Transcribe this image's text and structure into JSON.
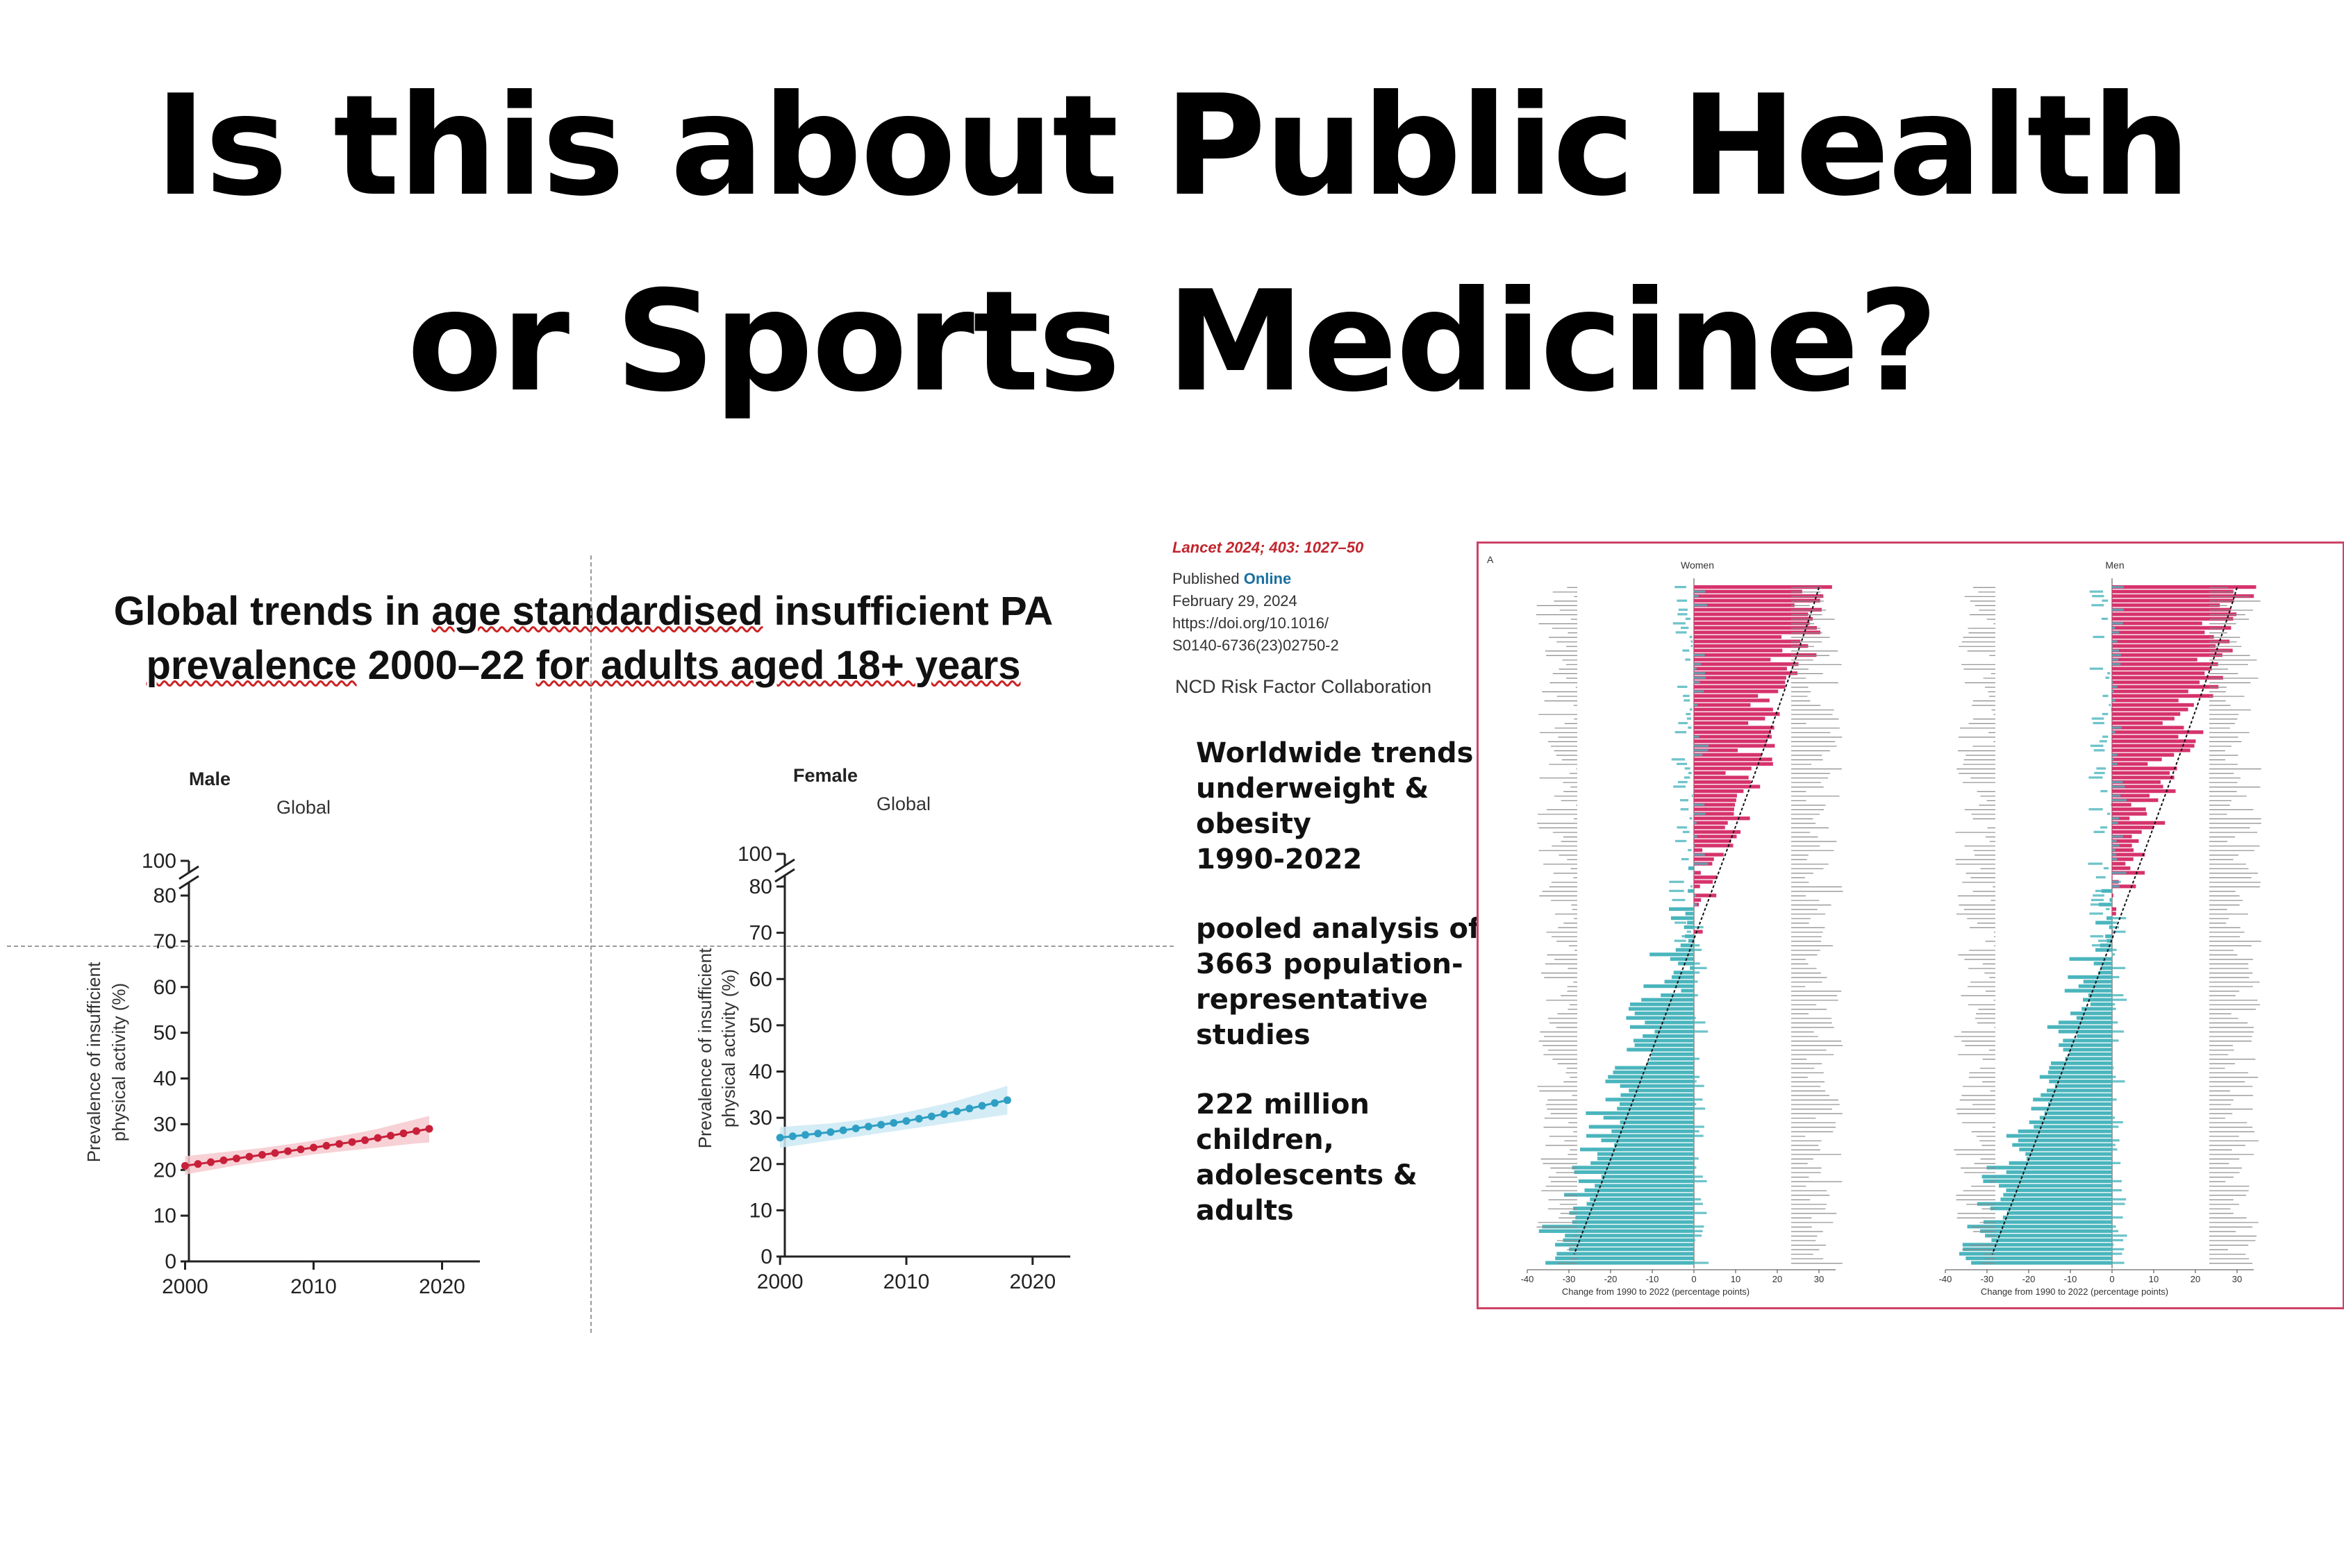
{
  "title": {
    "line1": "Is this about Public Health",
    "line2": "or Sports Medicine?"
  },
  "left_panel": {
    "title_before": "Global trends in ",
    "title_ul1": "age standardised",
    "title_mid": " insufficient PA",
    "title_ul2": "prevalence",
    "title_after1": " 2000–22 ",
    "title_ul3": "for adults aged 18+ years"
  },
  "chart_data": [
    {
      "type": "line",
      "label": "Male",
      "title": "Global",
      "ylabel": "Prevalence of insufficient physical activity (%)",
      "x": [
        2000,
        2001,
        2002,
        2003,
        2004,
        2005,
        2006,
        2007,
        2008,
        2009,
        2010,
        2011,
        2012,
        2013,
        2014,
        2015,
        2016,
        2017,
        2018,
        2019
      ],
      "values": [
        20.9,
        21.3,
        21.7,
        22.1,
        22.5,
        22.9,
        23.3,
        23.7,
        24.1,
        24.5,
        24.9,
        25.3,
        25.7,
        26.1,
        26.5,
        27.0,
        27.5,
        28.0,
        28.5,
        29.0
      ],
      "band_lower": [
        19.0,
        19.5,
        20.0,
        20.5,
        21.0,
        21.4,
        21.8,
        22.2,
        22.6,
        23.0,
        23.4,
        23.7,
        24.0,
        24.3,
        24.6,
        24.9,
        25.2,
        25.5,
        25.8,
        26.0
      ],
      "band_upper": [
        23.0,
        23.3,
        23.6,
        23.9,
        24.2,
        24.5,
        24.8,
        25.2,
        25.6,
        26.0,
        26.4,
        26.9,
        27.4,
        27.9,
        28.4,
        29.0,
        29.7,
        30.4,
        31.1,
        31.8
      ],
      "yticks": [
        0,
        10,
        20,
        30,
        40,
        50,
        60,
        70,
        80,
        100
      ],
      "xticks": [
        2000,
        2010,
        2020
      ],
      "xlim": [
        1999,
        2021
      ],
      "color": "#c8203a",
      "band_color": "#f6c9ce"
    },
    {
      "type": "line",
      "label": "Female",
      "title": "Global",
      "ylabel": "Prevalence of insufficient physical activity (%)",
      "x": [
        2000,
        2001,
        2002,
        2003,
        2004,
        2005,
        2006,
        2007,
        2008,
        2009,
        2010,
        2011,
        2012,
        2013,
        2014,
        2015,
        2016,
        2017,
        2018
      ],
      "values": [
        25.7,
        26.0,
        26.3,
        26.6,
        26.9,
        27.3,
        27.7,
        28.1,
        28.5,
        28.9,
        29.3,
        29.8,
        30.3,
        30.8,
        31.4,
        32.0,
        32.6,
        33.2,
        33.8
      ],
      "band_lower": [
        23.5,
        23.9,
        24.3,
        24.7,
        25.1,
        25.5,
        25.9,
        26.3,
        26.7,
        27.1,
        27.5,
        27.9,
        28.3,
        28.7,
        29.1,
        29.5,
        29.9,
        30.3,
        30.7
      ],
      "band_upper": [
        28.0,
        28.2,
        28.4,
        28.6,
        28.8,
        29.1,
        29.4,
        29.8,
        30.2,
        30.7,
        31.2,
        31.8,
        32.4,
        33.0,
        33.7,
        34.5,
        35.3,
        36.1,
        36.9
      ],
      "yticks": [
        0,
        10,
        20,
        30,
        40,
        50,
        60,
        70,
        80,
        100
      ],
      "xticks": [
        2000,
        2010,
        2020
      ],
      "xlim": [
        1999,
        2021
      ],
      "color": "#2e9fc4",
      "band_color": "#cde9f3"
    }
  ],
  "citation": {
    "journal": "Lancet 2024; 403: 1027–50",
    "published": "Published ",
    "online": "Online",
    "date": "February 29, 2024",
    "doi1": "https://doi.org/10.1016/",
    "doi2": "S0140-6736(23)02750-2",
    "collab": "NCD Risk Factor Collaboration"
  },
  "summary": {
    "block1": [
      "Worldwide trends",
      "underweight &",
      "obesity",
      "1990-2022"
    ],
    "block2": [
      "pooled analysis of",
      "3663 population-",
      "representative",
      "studies"
    ],
    "block3": [
      "222 million",
      "children,",
      "adolescents &",
      "adults"
    ]
  },
  "forest": {
    "panel_letter": "A",
    "women_label": "Women",
    "men_label": "Men",
    "xlabel": "Change from 1990 to 2022 (percentage points)",
    "xticks": [
      -40,
      -30,
      -20,
      -10,
      0,
      10,
      20,
      30
    ],
    "positive_color": "#d6336c",
    "negative_color": "#4ab5bd"
  }
}
